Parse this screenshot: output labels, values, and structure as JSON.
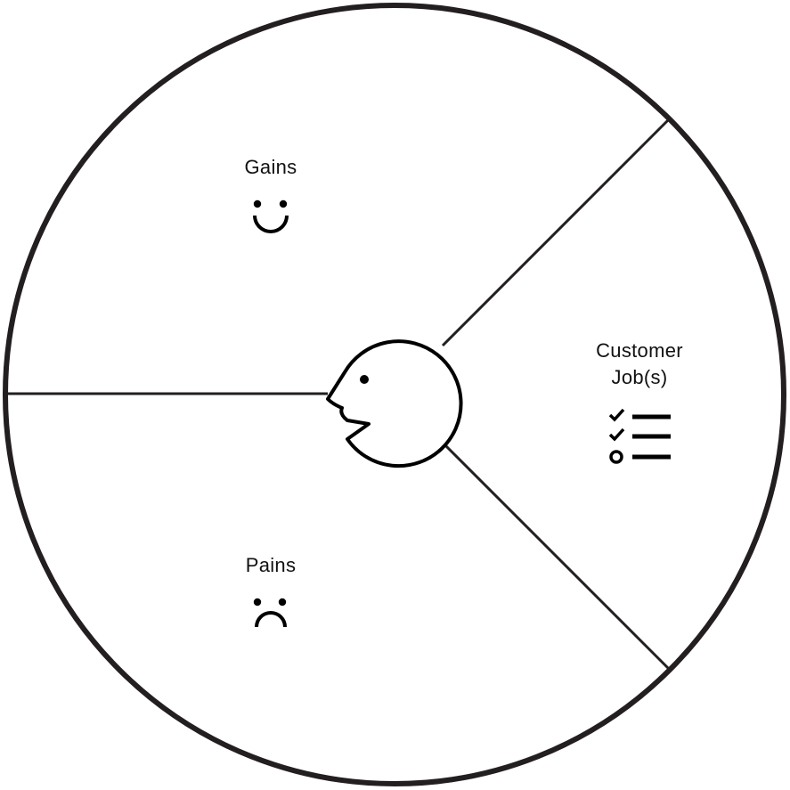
{
  "diagram": {
    "segments": {
      "gains": {
        "label": "Gains",
        "icon": "smile-icon"
      },
      "pains": {
        "label": "Pains",
        "icon": "frown-icon"
      },
      "customer_jobs": {
        "label_line1": "Customer",
        "label_line2": "Job(s)",
        "icon": "checklist-icon"
      }
    },
    "center_icon": "customer-face-icon"
  }
}
